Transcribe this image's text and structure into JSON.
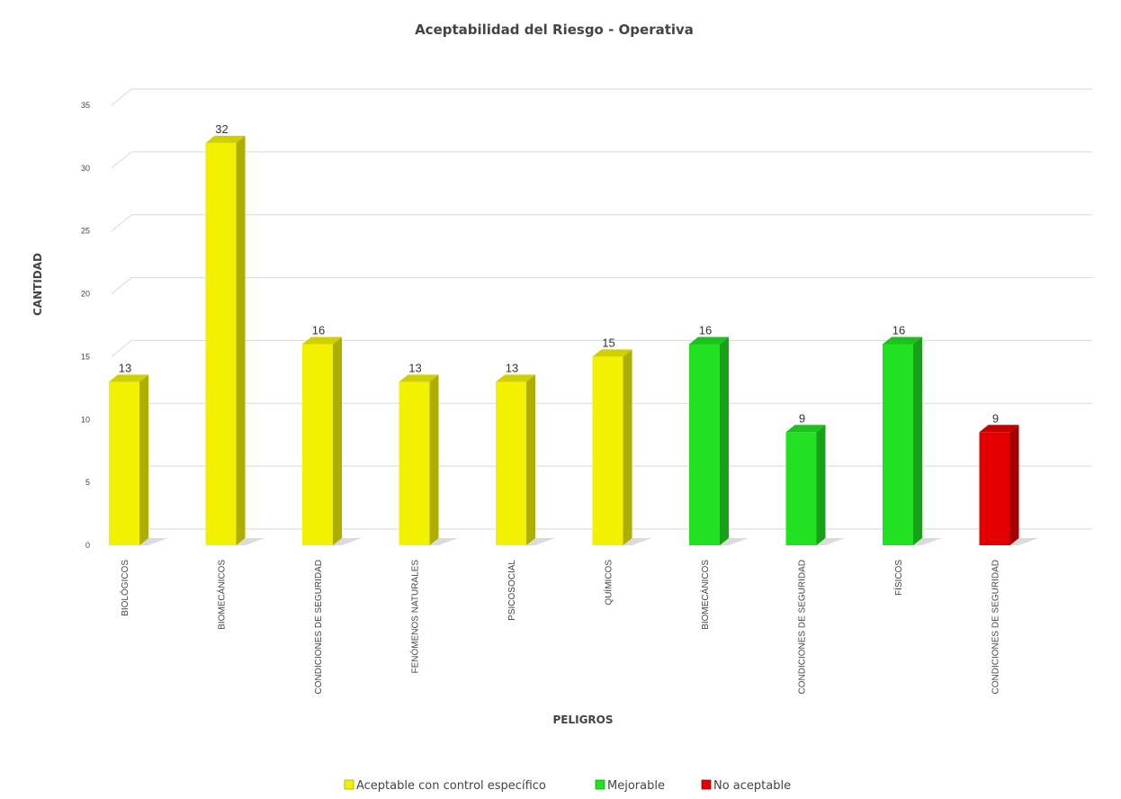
{
  "chart_data": {
    "type": "bar",
    "title": "Aceptabilidad del Riesgo - Operativa",
    "xlabel": "PELIGROS",
    "ylabel": "CANTIDAD",
    "ylim": [
      0,
      35
    ],
    "yticks": [
      0,
      5,
      10,
      15,
      20,
      25,
      30,
      35
    ],
    "grid": true,
    "legend_position": "bottom",
    "categories": [
      "BIOLÓGICOS",
      "BIOMECÁNICOS",
      "CONDICIONES DE SEGURIDAD",
      "FENÓMENOS NATURALES",
      "PSICOSOCIAL",
      "QUÍMICOS",
      "BIOMECÁNICOS",
      "CONDICIONES DE SEGURIDAD",
      "FÍSICOS",
      "CONDICIONES DE SEGURIDAD"
    ],
    "values": [
      13,
      32,
      16,
      13,
      13,
      15,
      16,
      9,
      16,
      9
    ],
    "bar_group": [
      0,
      0,
      0,
      0,
      0,
      0,
      1,
      1,
      1,
      2
    ],
    "series": [
      {
        "name": "Aceptable con control específico",
        "color": "#f2f200"
      },
      {
        "name": "Mejorable",
        "color": "#22e022"
      },
      {
        "name": "No aceptable",
        "color": "#e50000"
      }
    ]
  }
}
